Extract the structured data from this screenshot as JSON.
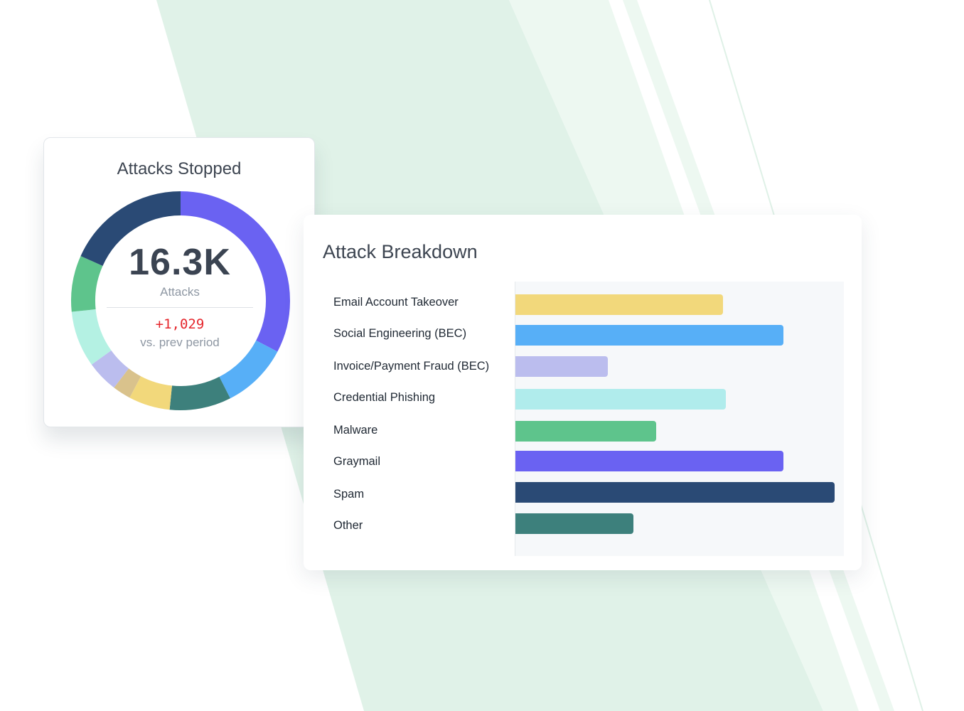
{
  "colors": {
    "background_stripe": "#e0f2e8",
    "purple": "#6a62f2",
    "blue": "#57aff7",
    "teal": "#3d807c",
    "yellow": "#f2d87b",
    "tan": "#d9c28c",
    "lavender": "#bbbdee",
    "mint": "#b4f1e3",
    "green": "#5ec48c",
    "navy": "#2a4a75",
    "cyan": "#b0ecec",
    "delta_red": "#e5262c"
  },
  "attacks_stopped": {
    "title": "Attacks Stopped",
    "total": "16.3K",
    "total_label": "Attacks",
    "delta": "+1,029",
    "delta_label": "vs. prev period",
    "donut_segments": [
      {
        "fraction": 0.327,
        "color": "#6a62f2"
      },
      {
        "fraction": 0.098,
        "color": "#57aff7"
      },
      {
        "fraction": 0.091,
        "color": "#3d807c"
      },
      {
        "fraction": 0.061,
        "color": "#f2d87b"
      },
      {
        "fraction": 0.027,
        "color": "#d9c28c"
      },
      {
        "fraction": 0.047,
        "color": "#bbbdee"
      },
      {
        "fraction": 0.083,
        "color": "#b4f1e3"
      },
      {
        "fraction": 0.083,
        "color": "#5ec48c"
      },
      {
        "fraction": 0.183,
        "color": "#2a4a75"
      }
    ]
  },
  "attack_breakdown": {
    "title": "Attack Breakdown"
  },
  "chart_data": {
    "type": "bar",
    "orientation": "horizontal",
    "title": "Attack Breakdown",
    "categories": [
      "Email Account Takeover",
      "Social Engineering (BEC)",
      "Invoice/Payment Fraud (BEC)",
      "Credential Phishing",
      "Malware",
      "Graymail",
      "Spam",
      "Other"
    ],
    "values": [
      0.65,
      0.84,
      0.29,
      0.66,
      0.44,
      0.84,
      1.0,
      0.37
    ],
    "colors": [
      "#f2d87b",
      "#57aff7",
      "#bbbdee",
      "#b0ecec",
      "#5ec48c",
      "#6a62f2",
      "#2a4a75",
      "#3d807c"
    ],
    "xlim": [
      0,
      1.02
    ],
    "grid": false,
    "legend": "none"
  }
}
